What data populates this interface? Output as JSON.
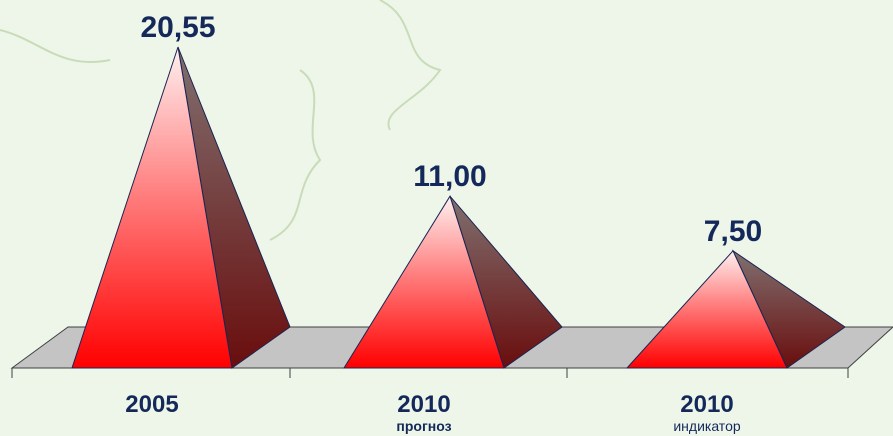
{
  "chart_data": {
    "type": "pyramid",
    "categories": [
      "2005",
      "2010",
      "2010"
    ],
    "subcategories": [
      null,
      "прогноз",
      "индикатор"
    ],
    "values": [
      20.55,
      11.0,
      7.5
    ],
    "value_labels": [
      "20,55",
      "11,00",
      "7,50"
    ],
    "color": "#ff1a1a"
  }
}
